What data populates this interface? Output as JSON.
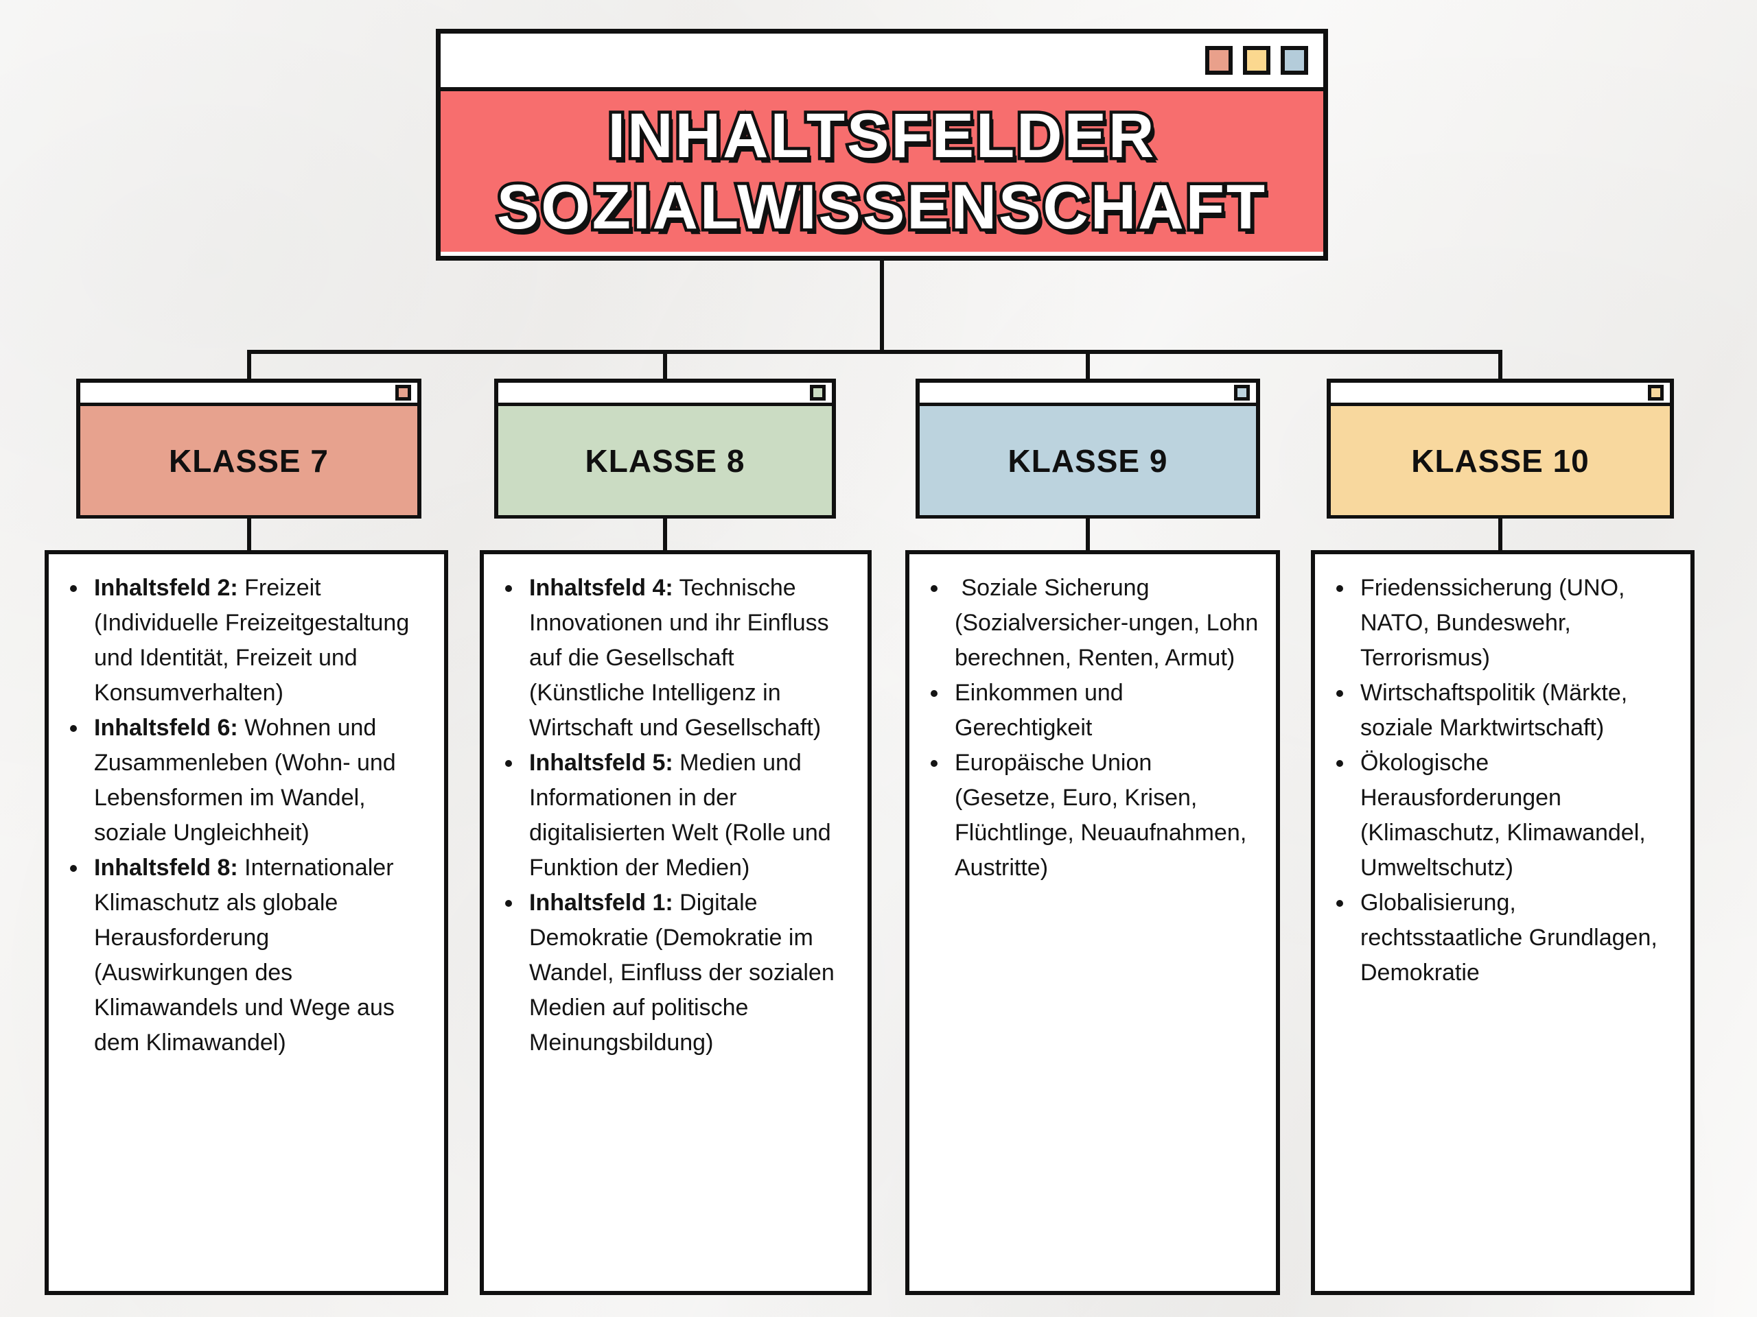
{
  "background": {
    "color": "#f6f5f3",
    "texture": "crumpled-paper"
  },
  "title_window": {
    "line1": "INHALTSFELDER",
    "line2": "SOZIALWISSENSCHAFT",
    "body_color": "#f76e6e",
    "text_color": "#ffffff",
    "outline_color": "#101010",
    "bar_buttons": [
      {
        "name": "window-button-salmon",
        "color": "#e9a08b"
      },
      {
        "name": "window-button-yellow",
        "color": "#fbd88f"
      },
      {
        "name": "window-button-blue",
        "color": "#b4ccda"
      }
    ]
  },
  "classes": [
    {
      "label": "KLASSE 7",
      "color": "#e7a28e",
      "items": [
        {
          "prefix": "Inhaltsfeld 2:",
          "text": " Freizeit (Individuelle Freizeitgestaltung und Identität, Freizeit und Konsumverhalten)"
        },
        {
          "prefix": "Inhaltsfeld 6:",
          "text": " Wohnen und Zusammenleben (Wohn- und Lebensformen im Wandel, soziale Ungleichheit)"
        },
        {
          "prefix": "Inhaltsfeld 8:",
          "text": " Internationaler Klimaschutz als globale Herausforderung (Auswirkungen des Klimawandels und Wege aus dem Klimawandel)"
        }
      ]
    },
    {
      "label": "KLASSE 8",
      "color": "#cbdcc3",
      "items": [
        {
          "prefix": "Inhaltsfeld 4:",
          "text": " Technische Innovationen und ihr Einfluss auf die Gesellschaft (Künstliche Intelligenz in Wirtschaft und Gesellschaft)"
        },
        {
          "prefix": "Inhaltsfeld 5:",
          "text": " Medien und Informationen in der digitalisierten Welt (Rolle und Funktion der Medien)"
        },
        {
          "prefix": "Inhaltsfeld 1:",
          "text": " Digitale Demokratie (Demokratie im Wandel, Einfluss der sozialen Medien auf politische Meinungsbildung)"
        }
      ]
    },
    {
      "label": "KLASSE 9",
      "color": "#bcd3de",
      "items": [
        {
          "text": " Soziale Sicherung (Sozialversicher-ungen, Lohn berechnen, Renten, Armut)"
        },
        {
          "text": "Einkommen und Gerechtigkeit"
        },
        {
          "text": "Europäische Union (Gesetze, Euro, Krisen, Flüchtlinge, Neuaufnahmen, Austritte)"
        }
      ]
    },
    {
      "label": "KLASSE 10",
      "color": "#f8d89e",
      "items": [
        {
          "text": "Friedenssicherung (UNO, NATO, Bundeswehr, Terrorismus)"
        },
        {
          "text": "Wirtschaftspolitik (Märkte, soziale Marktwirtschaft)"
        },
        {
          "text": "Ökologische Herausforderungen (Klimaschutz, Klimawandel, Umweltschutz)"
        },
        {
          "text": "Globalisierung, rechtsstaatliche Grundlagen, Demokratie"
        }
      ]
    }
  ]
}
